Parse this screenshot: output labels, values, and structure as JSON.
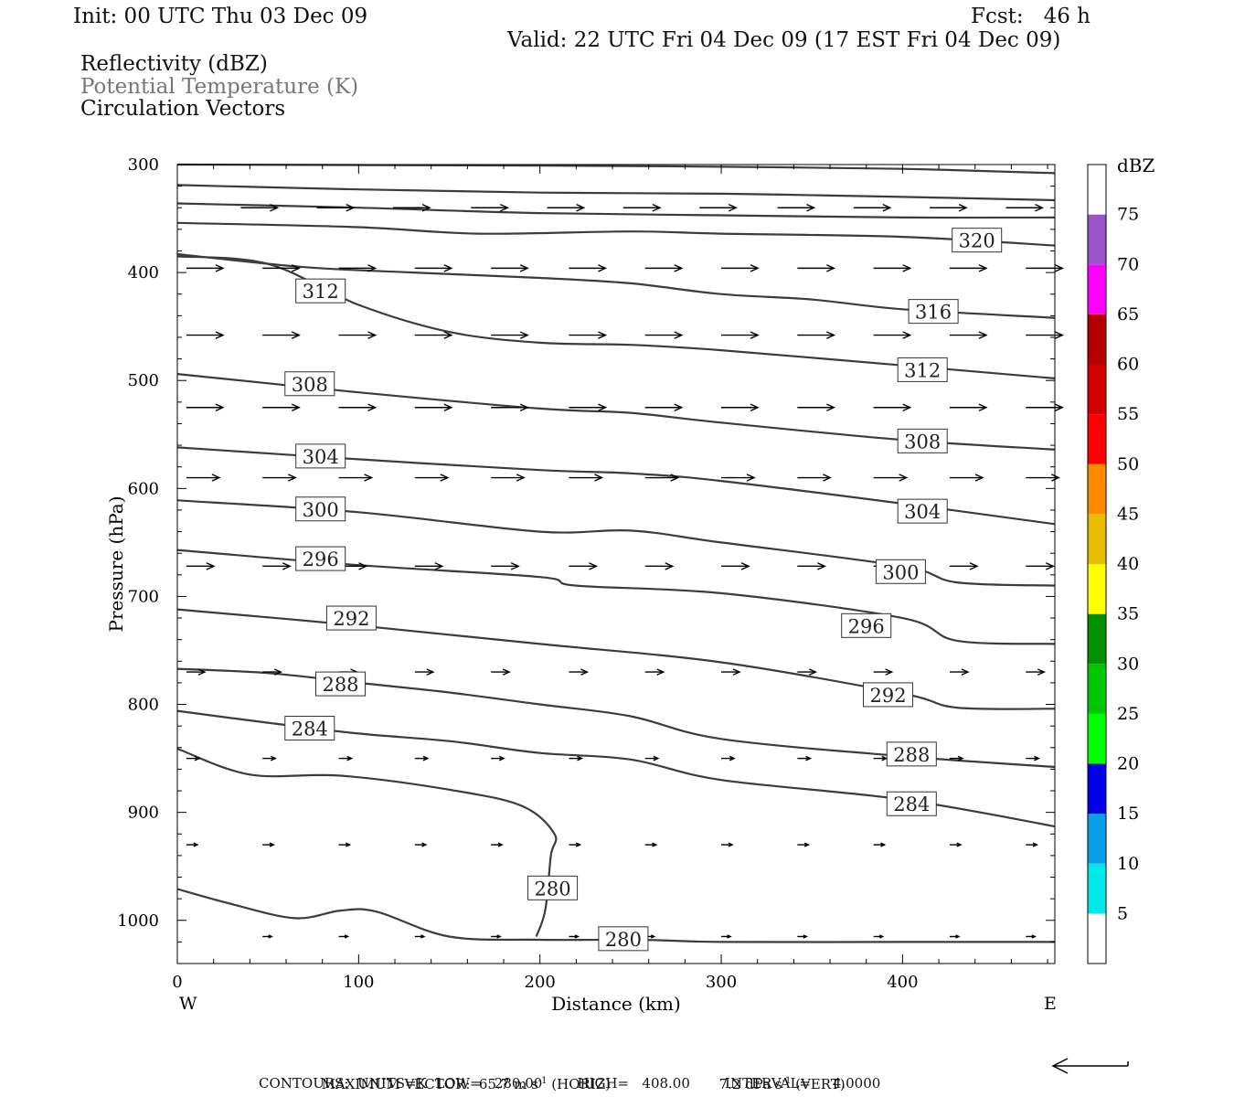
{
  "header": {
    "init": "Init: 00 UTC Thu 03 Dec 09",
    "fcst": "Fcst:   46 h",
    "valid": "Valid: 22 UTC Fri 04 Dec 09 (17 EST Fri 04 Dec 09)",
    "fields": [
      "Reflectivity (dBZ)",
      "Potential Temperature (K)",
      "Circulation Vectors"
    ]
  },
  "footer": {
    "max_vector_a": "MAXIMUM VECTOR:  65.7 m s",
    "max_vector_b": " (HORIZ)",
    "max_vector_c": "7.2 dPa s",
    "max_vector_d": " (VERT)",
    "exponent": "-1",
    "contours": "CONTOURS:  UNITS=K  LOW=   280.00        HIGH=   408.00        INTERVAL=     4.0000"
  },
  "chart_data": {
    "type": "line",
    "xlabel": "Distance (km)",
    "ylabel": "Pressure (hPa)",
    "xlim": [
      0,
      484
    ],
    "ylim": [
      1040,
      300
    ],
    "x_ticks": [
      0,
      100,
      200,
      300,
      400
    ],
    "y_ticks": [
      300,
      400,
      500,
      600,
      700,
      800,
      900,
      1000
    ],
    "x_end_labels": [
      "W",
      "E"
    ],
    "contour_line_color": "#3c3c3c",
    "contour_labels": [
      {
        "value": "320",
        "x": 441,
        "p": 370
      },
      {
        "value": "316",
        "x": 417,
        "p": 436
      },
      {
        "value": "312",
        "x": 79,
        "p": 417
      },
      {
        "value": "312",
        "x": 411,
        "p": 490
      },
      {
        "value": "308",
        "x": 73,
        "p": 503
      },
      {
        "value": "308",
        "x": 411,
        "p": 556
      },
      {
        "value": "304",
        "x": 79,
        "p": 570
      },
      {
        "value": "304",
        "x": 411,
        "p": 621
      },
      {
        "value": "300",
        "x": 79,
        "p": 619
      },
      {
        "value": "300",
        "x": 399,
        "p": 677
      },
      {
        "value": "296",
        "x": 79,
        "p": 665
      },
      {
        "value": "296",
        "x": 380,
        "p": 727
      },
      {
        "value": "292",
        "x": 96,
        "p": 720
      },
      {
        "value": "292",
        "x": 392,
        "p": 791
      },
      {
        "value": "288",
        "x": 90,
        "p": 781
      },
      {
        "value": "288",
        "x": 405,
        "p": 846
      },
      {
        "value": "284",
        "x": 73,
        "p": 822
      },
      {
        "value": "284",
        "x": 405,
        "p": 892
      },
      {
        "value": "280",
        "x": 207,
        "p": 970
      },
      {
        "value": "280",
        "x": 246,
        "p": 1017
      }
    ],
    "contours": [
      {
        "points": [
          [
            0,
            300
          ],
          [
            200,
            301
          ],
          [
            300,
            302
          ],
          [
            400,
            304
          ],
          [
            484,
            308
          ]
        ]
      },
      {
        "points": [
          [
            0,
            319
          ],
          [
            100,
            323
          ],
          [
            200,
            326
          ],
          [
            300,
            327
          ],
          [
            400,
            330
          ],
          [
            484,
            333
          ]
        ]
      },
      {
        "points": [
          [
            0,
            336
          ],
          [
            100,
            340
          ],
          [
            200,
            345
          ],
          [
            300,
            347
          ],
          [
            400,
            349
          ],
          [
            484,
            349
          ]
        ]
      },
      {
        "points": [
          [
            0,
            354
          ],
          [
            100,
            358
          ],
          [
            166,
            364
          ],
          [
            250,
            362
          ],
          [
            300,
            364
          ],
          [
            400,
            367
          ],
          [
            484,
            375
          ]
        ]
      },
      {
        "points": [
          [
            0,
            385
          ],
          [
            50,
            392
          ],
          [
            100,
            430
          ],
          [
            150,
            455
          ],
          [
            200,
            465
          ],
          [
            250,
            467
          ],
          [
            300,
            472
          ],
          [
            400,
            486
          ],
          [
            484,
            498
          ]
        ]
      },
      {
        "points": [
          [
            0,
            383
          ],
          [
            70,
            395
          ],
          [
            130,
            400
          ],
          [
            200,
            405
          ],
          [
            250,
            410
          ],
          [
            300,
            420
          ],
          [
            350,
            425
          ],
          [
            400,
            434
          ],
          [
            484,
            442
          ]
        ]
      },
      {
        "points": [
          [
            0,
            494
          ],
          [
            100,
            511
          ],
          [
            200,
            526
          ],
          [
            250,
            530
          ],
          [
            300,
            539
          ],
          [
            400,
            555
          ],
          [
            484,
            564
          ]
        ]
      },
      {
        "points": [
          [
            0,
            562
          ],
          [
            100,
            573
          ],
          [
            200,
            583
          ],
          [
            250,
            586
          ],
          [
            300,
            593
          ],
          [
            400,
            614
          ],
          [
            484,
            633
          ]
        ]
      },
      {
        "points": [
          [
            0,
            611
          ],
          [
            100,
            622
          ],
          [
            200,
            640
          ],
          [
            250,
            639
          ],
          [
            300,
            650
          ],
          [
            400,
            672
          ],
          [
            430,
            687
          ],
          [
            484,
            690
          ]
        ]
      },
      {
        "points": [
          [
            0,
            657
          ],
          [
            100,
            671
          ],
          [
            200,
            682
          ],
          [
            220,
            690
          ],
          [
            300,
            697
          ],
          [
            400,
            720
          ],
          [
            430,
            741
          ],
          [
            484,
            744
          ]
        ]
      },
      {
        "points": [
          [
            0,
            712
          ],
          [
            100,
            727
          ],
          [
            200,
            744
          ],
          [
            300,
            761
          ],
          [
            400,
            790
          ],
          [
            430,
            803
          ],
          [
            484,
            804
          ]
        ]
      },
      {
        "points": [
          [
            0,
            767
          ],
          [
            50,
            771
          ],
          [
            100,
            780
          ],
          [
            150,
            789
          ],
          [
            200,
            800
          ],
          [
            250,
            811
          ],
          [
            300,
            832
          ],
          [
            400,
            848
          ],
          [
            484,
            858
          ]
        ]
      },
      {
        "points": [
          [
            0,
            806
          ],
          [
            50,
            817
          ],
          [
            100,
            827
          ],
          [
            150,
            834
          ],
          [
            200,
            845
          ],
          [
            250,
            851
          ],
          [
            300,
            870
          ],
          [
            400,
            888
          ],
          [
            484,
            913
          ]
        ]
      },
      {
        "points": [
          [
            0,
            841
          ],
          [
            40,
            865
          ],
          [
            90,
            866
          ],
          [
            150,
            879
          ],
          [
            190,
            894
          ],
          [
            208,
            920
          ],
          [
            206,
            940
          ],
          [
            203,
            990
          ],
          [
            198,
            1015
          ]
        ]
      },
      {
        "points": [
          [
            0,
            971
          ],
          [
            30,
            985
          ],
          [
            65,
            998
          ],
          [
            90,
            991
          ],
          [
            110,
            992
          ],
          [
            150,
            1015
          ],
          [
            200,
            1018
          ],
          [
            255,
            1018
          ],
          [
            300,
            1020
          ],
          [
            400,
            1020
          ],
          [
            484,
            1020
          ]
        ]
      }
    ],
    "vectors": [
      {
        "p": 340,
        "x": [
          35,
          77,
          119,
          162,
          204,
          246,
          288,
          331,
          373,
          415,
          457
        ],
        "u": [
          20,
          20,
          20,
          20,
          20,
          20,
          20,
          20,
          20,
          20,
          20
        ],
        "w": [
          0,
          0,
          0,
          0,
          0,
          0,
          0,
          0,
          0,
          0,
          0
        ]
      },
      {
        "p": 396,
        "x": [
          5,
          47,
          89,
          131,
          173,
          216,
          258,
          300,
          342,
          384,
          426,
          468
        ],
        "u": [
          20,
          20,
          20,
          20,
          20,
          20,
          20,
          20,
          20,
          20,
          20,
          20
        ],
        "w": [
          0,
          0,
          0,
          0,
          0,
          0,
          0,
          0,
          0,
          0,
          0,
          0
        ]
      },
      {
        "p": 458,
        "x": [
          5,
          47,
          89,
          131,
          173,
          216,
          258,
          300,
          342,
          384,
          426,
          468
        ],
        "u": [
          20,
          20,
          20,
          20,
          20,
          20,
          20,
          20,
          20,
          20,
          20,
          20
        ],
        "w": [
          0,
          0,
          0,
          0,
          0,
          0,
          0,
          0,
          0,
          0,
          0,
          0
        ]
      },
      {
        "p": 525,
        "x": [
          5,
          47,
          89,
          131,
          173,
          216,
          258,
          300,
          342,
          384,
          426,
          468
        ],
        "u": [
          20,
          20,
          20,
          20,
          20,
          20,
          20,
          20,
          20,
          20,
          20,
          20
        ],
        "w": [
          0,
          0,
          0,
          0,
          0,
          0,
          0,
          0,
          0,
          0,
          0,
          0
        ]
      },
      {
        "p": 590,
        "x": [
          5,
          47,
          89,
          131,
          173,
          216,
          258,
          300,
          342,
          384,
          426,
          468
        ],
        "u": [
          18,
          18,
          18,
          18,
          18,
          18,
          18,
          18,
          18,
          18,
          18,
          18
        ],
        "w": [
          0,
          0,
          0,
          0,
          0,
          0,
          0,
          0,
          0,
          0,
          0,
          0
        ]
      },
      {
        "p": 672,
        "x": [
          5,
          47,
          89,
          131,
          173,
          216,
          258,
          300,
          342,
          384,
          426,
          468
        ],
        "u": [
          15,
          15,
          15,
          15,
          15,
          15,
          15,
          15,
          15,
          15,
          15,
          15
        ],
        "w": [
          0,
          0,
          0,
          0,
          0,
          0,
          0,
          0,
          0,
          0,
          0,
          0
        ]
      },
      {
        "p": 770,
        "x": [
          5,
          47,
          89,
          131,
          173,
          216,
          258,
          300,
          342,
          384,
          426,
          468
        ],
        "u": [
          10,
          10,
          10,
          10,
          10,
          10,
          10,
          10,
          10,
          10,
          10,
          10
        ],
        "w": [
          0,
          0,
          0,
          0,
          0,
          0,
          0,
          0,
          0,
          0,
          0,
          0
        ]
      },
      {
        "p": 850,
        "x": [
          5,
          47,
          89,
          131,
          173,
          216,
          258,
          300,
          342,
          384,
          426,
          468
        ],
        "u": [
          7,
          7,
          7,
          7,
          7,
          7,
          7,
          7,
          7,
          7,
          7,
          7
        ],
        "w": [
          0,
          0,
          0,
          0,
          0,
          0,
          0,
          0,
          0,
          0,
          0,
          0
        ]
      },
      {
        "p": 930,
        "x": [
          5,
          47,
          89,
          131,
          173,
          216,
          258,
          300,
          342,
          384,
          426,
          468
        ],
        "u": [
          6,
          6,
          6,
          6,
          6,
          6,
          6,
          6,
          6,
          6,
          6,
          6
        ],
        "w": [
          0,
          0,
          0,
          0,
          0,
          0,
          0,
          0,
          0,
          0,
          0,
          0
        ]
      },
      {
        "p": 1015,
        "x": [
          47,
          89,
          131,
          173,
          216,
          258,
          300,
          342,
          384,
          426,
          468
        ],
        "u": [
          5,
          5,
          5,
          5,
          5,
          5,
          5,
          5,
          5,
          5,
          5
        ],
        "w": [
          0,
          0,
          0,
          0,
          0,
          0,
          0,
          0,
          0,
          0,
          0
        ]
      }
    ],
    "colorbar": {
      "title": "dBZ",
      "labels": [
        "5",
        "10",
        "15",
        "20",
        "25",
        "30",
        "35",
        "40",
        "45",
        "50",
        "55",
        "60",
        "65",
        "70",
        "75"
      ],
      "colors": [
        "#ffffff",
        "#00e8e8",
        "#0a9ee8",
        "#0000e8",
        "#00ff00",
        "#00c800",
        "#009000",
        "#ffff00",
        "#e8bc00",
        "#ff8c00",
        "#ff0000",
        "#d20000",
        "#b40000",
        "#ff00ff",
        "#9955c9",
        "#ffffff"
      ]
    },
    "reference_vector": "left-arrow"
  }
}
